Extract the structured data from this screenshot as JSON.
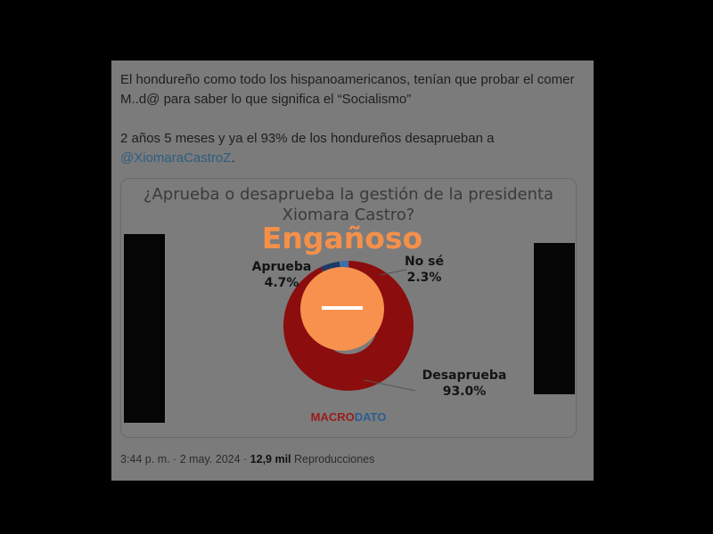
{
  "tweet": {
    "text_line1": "El hondureño como todo los hispanoamericanos, tenían que probar el comer M..d@ para saber lo que significa el “Socialismo”",
    "text_line2": "2 años 5 meses y ya el 93% de los hondureños desaprueban a ",
    "mention": "@XiomaraCastroZ",
    "mention_suffix": ".",
    "time": "3:44 p. m. · 2 may. 2024 · ",
    "views_count": "12,9 mil",
    "views_label": " Reproducciones"
  },
  "verdict": {
    "label": "Engañoso",
    "color": "#f7914d",
    "icon": "minus-icon"
  },
  "chart_data": {
    "type": "pie",
    "donut": true,
    "title": "¿Aprueba o desaprueba la gestión de la presidenta Xiomara Castro?",
    "categories": [
      "Aprueba",
      "No sé",
      "Desaprueba"
    ],
    "values": [
      4.7,
      2.3,
      93.0
    ],
    "value_labels": [
      "4.7%",
      "2.3%",
      "93.0%"
    ],
    "colors": [
      "#1f3a66",
      "#3d6fa6",
      "#8b0d0d"
    ],
    "source_logo": {
      "part1": "MACRO",
      "part2": "DATO",
      "color1": "#9b1c1c",
      "color2": "#2b5d92"
    }
  }
}
